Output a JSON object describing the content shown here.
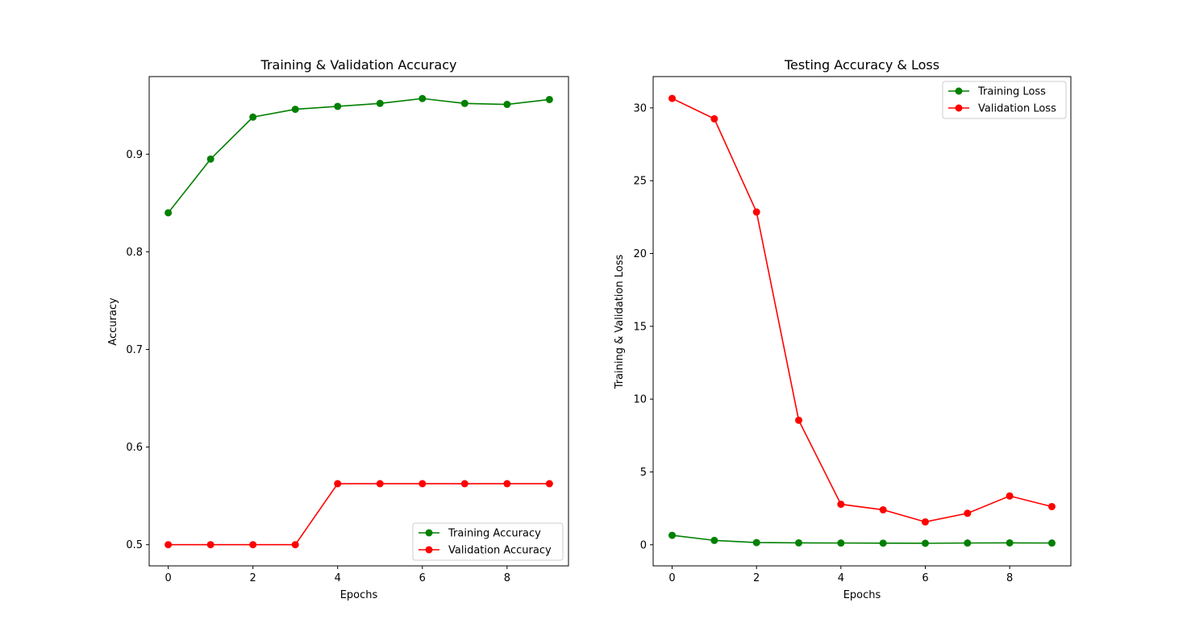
{
  "chart_data": [
    {
      "type": "line",
      "title": "Training & Validation Accuracy",
      "xlabel": "Epochs",
      "ylabel": "Accuracy",
      "xlim": [
        -0.45,
        9.45
      ],
      "ylim": [
        0.4783,
        0.9795
      ],
      "xticks": [
        0,
        2,
        4,
        6,
        8
      ],
      "yticks": [
        0.5,
        0.6,
        0.7,
        0.8,
        0.9
      ],
      "x": [
        0,
        1,
        2,
        3,
        4,
        5,
        6,
        7,
        8,
        9
      ],
      "grid": false,
      "legend_position": "lower-right",
      "series": [
        {
          "name": "Training Accuracy",
          "color": "#008000",
          "values": [
            0.84,
            0.895,
            0.938,
            0.946,
            0.949,
            0.952,
            0.957,
            0.952,
            0.951,
            0.956
          ]
        },
        {
          "name": "Validation Accuracy",
          "color": "#ff0000",
          "values": [
            0.5,
            0.5,
            0.5,
            0.5,
            0.5625,
            0.5625,
            0.5625,
            0.5625,
            0.5625,
            0.5625
          ]
        }
      ]
    },
    {
      "type": "line",
      "title": "Testing Accuracy & Loss",
      "xlabel": "Epochs",
      "ylabel": "Training & Validation Loss",
      "xlim": [
        -0.45,
        9.45
      ],
      "ylim": [
        -1.45,
        32.15
      ],
      "xticks": [
        0,
        2,
        4,
        6,
        8
      ],
      "yticks": [
        0,
        5,
        10,
        15,
        20,
        25,
        30
      ],
      "x": [
        0,
        1,
        2,
        3,
        4,
        5,
        6,
        7,
        8,
        9
      ],
      "grid": false,
      "legend_position": "upper-right",
      "series": [
        {
          "name": "Training Loss",
          "color": "#008000",
          "values": [
            0.65,
            0.3,
            0.15,
            0.13,
            0.12,
            0.11,
            0.1,
            0.12,
            0.13,
            0.12
          ]
        },
        {
          "name": "Validation Loss",
          "color": "#ff0000",
          "values": [
            30.65,
            29.25,
            22.85,
            8.55,
            2.78,
            2.4,
            1.57,
            2.16,
            3.35,
            2.62
          ]
        }
      ]
    }
  ]
}
